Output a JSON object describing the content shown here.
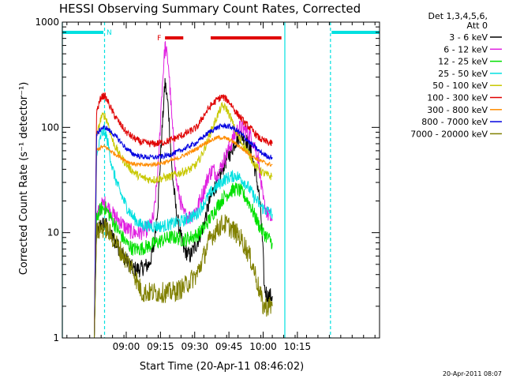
{
  "chart_data": {
    "type": "line",
    "title": "HESSI Observing Summary Count Rates, Corrected",
    "xlabel": "Start Time (20-Apr-11 08:46:02)",
    "ylabel": "Corrected Count Rate (s⁻¹ detector⁻¹)",
    "y_scale": "log",
    "ylim": [
      1,
      1000
    ],
    "xlim_min": [
      -14,
      125
    ],
    "x_unit": "minutes after 08:46:02",
    "x_ticks": [
      {
        "v": 14,
        "label": "09:00"
      },
      {
        "v": 29,
        "label": "09:15"
      },
      {
        "v": 44,
        "label": "09:30"
      },
      {
        "v": 59,
        "label": "09:45"
      },
      {
        "v": 74,
        "label": "10:00"
      },
      {
        "v": 89,
        "label": "10:15"
      }
    ],
    "y_ticks": [
      {
        "v": 1,
        "label": "1"
      },
      {
        "v": 10,
        "label": "10"
      },
      {
        "v": 100,
        "label": "100"
      },
      {
        "v": 1000,
        "label": "1000"
      }
    ],
    "legend_header": [
      "Det 1,3,4,5,6,",
      "Att 0"
    ],
    "legend_position": "top-right, outside plot",
    "annotations": {
      "n_label": "N",
      "f_label": "F",
      "night_color": "#00e0e0",
      "flare_color": "#e00000",
      "night_bars": [
        [
          -14,
          4
        ],
        [
          104,
          125
        ]
      ],
      "night_lines": [
        -14,
        4.5,
        83.5,
        103.5
      ],
      "flare_bars": [
        [
          31,
          39
        ],
        [
          51,
          82
        ]
      ]
    },
    "timestamp": "20-Apr-2011 08:07",
    "series": [
      {
        "name": "3 - 6 keV",
        "color": "#000000",
        "noise": 0.08,
        "points": [
          [
            0,
            1
          ],
          [
            1,
            10
          ],
          [
            3,
            12
          ],
          [
            5,
            12
          ],
          [
            8,
            9
          ],
          [
            11,
            7
          ],
          [
            14,
            5.5
          ],
          [
            17,
            4.5
          ],
          [
            20,
            4.5
          ],
          [
            24,
            5
          ],
          [
            26,
            7
          ],
          [
            28,
            20
          ],
          [
            29.5,
            80
          ],
          [
            31,
            270
          ],
          [
            32.5,
            150
          ],
          [
            34,
            40
          ],
          [
            36,
            15
          ],
          [
            39,
            7
          ],
          [
            42,
            6
          ],
          [
            45,
            8
          ],
          [
            48,
            12
          ],
          [
            50,
            18
          ],
          [
            52,
            25
          ],
          [
            54,
            30
          ],
          [
            57,
            45
          ],
          [
            60,
            60
          ],
          [
            62,
            75
          ],
          [
            64,
            85
          ],
          [
            66,
            80
          ],
          [
            68,
            65
          ],
          [
            70,
            45
          ],
          [
            72,
            25
          ],
          [
            73,
            15
          ],
          [
            74,
            6
          ],
          [
            74.5,
            3
          ],
          [
            76,
            2.5
          ],
          [
            78,
            2.5
          ]
        ]
      },
      {
        "name": "6 - 12 keV",
        "color": "#e020e0",
        "noise": 0.08,
        "points": [
          [
            0,
            1
          ],
          [
            1,
            14
          ],
          [
            3,
            18
          ],
          [
            5,
            19
          ],
          [
            8,
            15
          ],
          [
            11,
            13
          ],
          [
            14,
            11
          ],
          [
            17,
            10
          ],
          [
            20,
            10
          ],
          [
            24,
            11
          ],
          [
            26,
            14
          ],
          [
            28,
            40
          ],
          [
            29.5,
            200
          ],
          [
            31,
            600
          ],
          [
            32.5,
            400
          ],
          [
            34,
            120
          ],
          [
            36,
            30
          ],
          [
            39,
            15
          ],
          [
            42,
            14
          ],
          [
            45,
            17
          ],
          [
            48,
            25
          ],
          [
            50,
            35
          ],
          [
            52,
            40
          ],
          [
            54,
            35
          ],
          [
            57,
            50
          ],
          [
            60,
            70
          ],
          [
            62,
            90
          ],
          [
            64,
            100
          ],
          [
            66,
            95
          ],
          [
            68,
            85
          ],
          [
            70,
            70
          ],
          [
            72,
            50
          ],
          [
            73,
            30
          ],
          [
            74,
            20
          ],
          [
            76,
            15
          ],
          [
            78,
            13
          ]
        ]
      },
      {
        "name": "12 - 25 keV",
        "color": "#00e000",
        "noise": 0.07,
        "points": [
          [
            0,
            1
          ],
          [
            1,
            14
          ],
          [
            3,
            17
          ],
          [
            5,
            17
          ],
          [
            8,
            13
          ],
          [
            11,
            10
          ],
          [
            14,
            8
          ],
          [
            17,
            7
          ],
          [
            20,
            7
          ],
          [
            24,
            7.5
          ],
          [
            27,
            8
          ],
          [
            30,
            8.5
          ],
          [
            33,
            9
          ],
          [
            36,
            9
          ],
          [
            39,
            8.5
          ],
          [
            42,
            9
          ],
          [
            45,
            9.5
          ],
          [
            48,
            11
          ],
          [
            51,
            14
          ],
          [
            54,
            18
          ],
          [
            57,
            22
          ],
          [
            60,
            25
          ],
          [
            62,
            26
          ],
          [
            64,
            25
          ],
          [
            66,
            22
          ],
          [
            68,
            19
          ],
          [
            70,
            15
          ],
          [
            72,
            12
          ],
          [
            74,
            10
          ],
          [
            76,
            9
          ],
          [
            78,
            8
          ]
        ]
      },
      {
        "name": "25 - 50 keV",
        "color": "#00e0e0",
        "noise": 0.06,
        "points": [
          [
            0,
            1
          ],
          [
            1,
            50
          ],
          [
            3,
            85
          ],
          [
            4.5,
            95
          ],
          [
            6,
            70
          ],
          [
            8,
            40
          ],
          [
            11,
            25
          ],
          [
            14,
            18
          ],
          [
            17,
            14
          ],
          [
            20,
            12
          ],
          [
            24,
            11.5
          ],
          [
            27,
            11.5
          ],
          [
            30,
            11.5
          ],
          [
            33,
            12
          ],
          [
            36,
            12.5
          ],
          [
            39,
            13
          ],
          [
            42,
            14
          ],
          [
            45,
            15
          ],
          [
            48,
            19
          ],
          [
            51,
            24
          ],
          [
            54,
            28
          ],
          [
            57,
            32
          ],
          [
            60,
            34
          ],
          [
            62,
            35
          ],
          [
            64,
            33
          ],
          [
            66,
            30
          ],
          [
            68,
            26
          ],
          [
            70,
            22
          ],
          [
            72,
            19
          ],
          [
            74,
            17
          ],
          [
            76,
            16
          ],
          [
            78,
            15
          ]
        ]
      },
      {
        "name": "50 - 100 keV",
        "color": "#c8c800",
        "noise": 0.04,
        "points": [
          [
            0,
            1
          ],
          [
            1,
            80
          ],
          [
            3,
            125
          ],
          [
            4.5,
            130
          ],
          [
            6,
            110
          ],
          [
            8,
            75
          ],
          [
            11,
            55
          ],
          [
            14,
            45
          ],
          [
            17,
            38
          ],
          [
            20,
            34
          ],
          [
            24,
            32
          ],
          [
            27,
            32
          ],
          [
            30,
            33
          ],
          [
            33,
            34
          ],
          [
            36,
            36
          ],
          [
            39,
            38
          ],
          [
            42,
            40
          ],
          [
            45,
            45
          ],
          [
            48,
            60
          ],
          [
            51,
            90
          ],
          [
            54,
            130
          ],
          [
            56,
            160
          ],
          [
            58,
            150
          ],
          [
            60,
            120
          ],
          [
            62,
            90
          ],
          [
            64,
            75
          ],
          [
            66,
            65
          ],
          [
            68,
            55
          ],
          [
            70,
            45
          ],
          [
            72,
            40
          ],
          [
            74,
            37
          ],
          [
            76,
            35
          ],
          [
            78,
            34
          ]
        ]
      },
      {
        "name": "100 - 300 keV",
        "color": "#e00000",
        "noise": 0.035,
        "points": [
          [
            0,
            1
          ],
          [
            1,
            140
          ],
          [
            3,
            195
          ],
          [
            4.5,
            200
          ],
          [
            6,
            175
          ],
          [
            8,
            140
          ],
          [
            11,
            110
          ],
          [
            14,
            90
          ],
          [
            17,
            80
          ],
          [
            20,
            73
          ],
          [
            24,
            70
          ],
          [
            27,
            70
          ],
          [
            30,
            72
          ],
          [
            33,
            75
          ],
          [
            36,
            80
          ],
          [
            39,
            85
          ],
          [
            42,
            92
          ],
          [
            45,
            100
          ],
          [
            48,
            130
          ],
          [
            51,
            160
          ],
          [
            54,
            185
          ],
          [
            56,
            195
          ],
          [
            58,
            185
          ],
          [
            60,
            165
          ],
          [
            62,
            140
          ],
          [
            64,
            125
          ],
          [
            66,
            110
          ],
          [
            68,
            100
          ],
          [
            70,
            90
          ],
          [
            72,
            80
          ],
          [
            74,
            75
          ],
          [
            76,
            72
          ],
          [
            78,
            70
          ]
        ]
      },
      {
        "name": "300 - 800 keV",
        "color": "#ff8c00",
        "noise": 0.02,
        "points": [
          [
            0,
            1
          ],
          [
            1,
            60
          ],
          [
            3,
            65
          ],
          [
            5,
            65
          ],
          [
            8,
            58
          ],
          [
            11,
            53
          ],
          [
            14,
            48
          ],
          [
            17,
            45
          ],
          [
            20,
            44
          ],
          [
            24,
            44
          ],
          [
            27,
            45
          ],
          [
            30,
            46
          ],
          [
            33,
            48
          ],
          [
            36,
            50
          ],
          [
            39,
            54
          ],
          [
            42,
            58
          ],
          [
            45,
            63
          ],
          [
            48,
            70
          ],
          [
            51,
            75
          ],
          [
            54,
            80
          ],
          [
            56,
            80
          ],
          [
            58,
            78
          ],
          [
            60,
            75
          ],
          [
            62,
            70
          ],
          [
            64,
            65
          ],
          [
            66,
            60
          ],
          [
            68,
            56
          ],
          [
            70,
            52
          ],
          [
            72,
            49
          ],
          [
            74,
            47
          ],
          [
            76,
            45
          ],
          [
            78,
            44
          ]
        ]
      },
      {
        "name": "800 - 7000 keV",
        "color": "#0000e0",
        "noise": 0.025,
        "points": [
          [
            0,
            1
          ],
          [
            1,
            85
          ],
          [
            3,
            98
          ],
          [
            5,
            100
          ],
          [
            8,
            88
          ],
          [
            11,
            75
          ],
          [
            14,
            63
          ],
          [
            17,
            56
          ],
          [
            20,
            53
          ],
          [
            24,
            52
          ],
          [
            27,
            52
          ],
          [
            30,
            53
          ],
          [
            33,
            55
          ],
          [
            36,
            58
          ],
          [
            39,
            62
          ],
          [
            42,
            67
          ],
          [
            45,
            72
          ],
          [
            48,
            82
          ],
          [
            51,
            92
          ],
          [
            54,
            100
          ],
          [
            56,
            103
          ],
          [
            58,
            103
          ],
          [
            60,
            100
          ],
          [
            62,
            95
          ],
          [
            64,
            88
          ],
          [
            66,
            80
          ],
          [
            68,
            72
          ],
          [
            70,
            66
          ],
          [
            72,
            60
          ],
          [
            74,
            56
          ],
          [
            76,
            53
          ],
          [
            78,
            52
          ]
        ]
      },
      {
        "name": "7000 - 20000 keV",
        "color": "#808000",
        "noise": 0.1,
        "points": [
          [
            0,
            1
          ],
          [
            1,
            10
          ],
          [
            3,
            11
          ],
          [
            5,
            11
          ],
          [
            8,
            9
          ],
          [
            11,
            7
          ],
          [
            14,
            5.5
          ],
          [
            17,
            4.5
          ],
          [
            19,
            3.3
          ],
          [
            21,
            2.7
          ],
          [
            24,
            2.7
          ],
          [
            27,
            2.7
          ],
          [
            30,
            2.7
          ],
          [
            33,
            2.7
          ],
          [
            36,
            2.8
          ],
          [
            39,
            3
          ],
          [
            42,
            3.5
          ],
          [
            45,
            4
          ],
          [
            48,
            6
          ],
          [
            51,
            9
          ],
          [
            54,
            11
          ],
          [
            56,
            12
          ],
          [
            58,
            12
          ],
          [
            60,
            11
          ],
          [
            62,
            10
          ],
          [
            64,
            9
          ],
          [
            66,
            7.5
          ],
          [
            68,
            6
          ],
          [
            70,
            4.5
          ],
          [
            72,
            3
          ],
          [
            74,
            2
          ],
          [
            76,
            2
          ],
          [
            78,
            2
          ]
        ]
      }
    ]
  }
}
